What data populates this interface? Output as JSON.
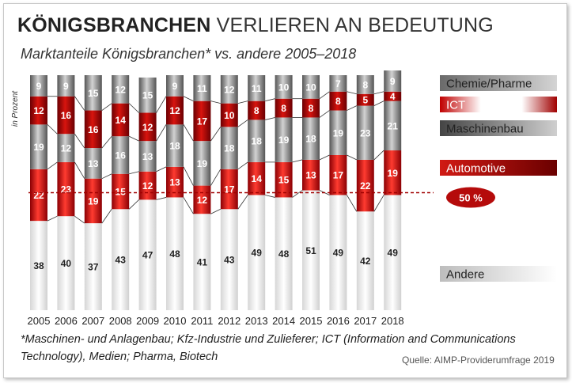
{
  "header": {
    "title_bold": "KÖNIGSBRANCHEN",
    "title_rest": "VERLIEREN AN BEDEUTUNG",
    "subtitle": "Marktanteile Königsbranchen* vs. andere 2005–2018"
  },
  "footer": {
    "footnote": "*Maschinen- und Anlagenbau; Kfz-Industrie und Zulieferer; ICT (Information and Communications Technology), Medien; Pharma, Biotech",
    "source": "Quelle: AIMP-Providerumfrage 2019"
  },
  "colors": {
    "andere": "#e6e6e6",
    "automotive": "#b3070b",
    "maschinenbau": "#8a8a8a",
    "ict": "#b3070b",
    "chemie": "#8c8c8c",
    "reference_line": "#a00000"
  },
  "chart_data": {
    "type": "bar",
    "stacked": true,
    "ylabel": "in Prozent",
    "ylim": [
      0,
      100
    ],
    "categories": [
      "2005",
      "2006",
      "2007",
      "2008",
      "2009",
      "2010",
      "2011",
      "2012",
      "2013",
      "2014",
      "2015",
      "2016",
      "2017",
      "2018"
    ],
    "series": [
      {
        "name": "Andere",
        "values": [
          38,
          40,
          37,
          43,
          47,
          48,
          41,
          43,
          49,
          48,
          51,
          49,
          42,
          49
        ]
      },
      {
        "name": "Automotive",
        "values": [
          22,
          23,
          19,
          15,
          12,
          13,
          12,
          17,
          14,
          15,
          13,
          17,
          22,
          19
        ]
      },
      {
        "name": "Maschinenbau",
        "values": [
          19,
          12,
          13,
          16,
          13,
          18,
          19,
          18,
          18,
          19,
          18,
          19,
          23,
          21
        ]
      },
      {
        "name": "ICT",
        "values": [
          12,
          16,
          16,
          14,
          12,
          12,
          17,
          10,
          8,
          8,
          8,
          8,
          5,
          4
        ]
      },
      {
        "name": "Chemie/Pharme",
        "values": [
          9,
          9,
          15,
          12,
          15,
          9,
          11,
          12,
          11,
          10,
          10,
          7,
          8,
          9
        ]
      }
    ],
    "reference_line": {
      "value": 50,
      "label": "50 %"
    },
    "legend_position": "right"
  }
}
